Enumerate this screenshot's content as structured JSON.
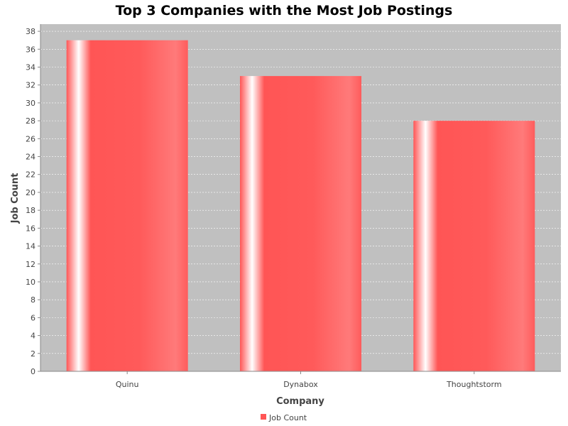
{
  "chart_data": {
    "type": "bar",
    "title": "Top 3 Companies with the Most Job Postings",
    "xlabel": "Company",
    "ylabel": "Job Count",
    "categories": [
      "Quinu",
      "Dynabox",
      "Thoughtstorm"
    ],
    "series": [
      {
        "name": "Job Count",
        "values": [
          37,
          33,
          28
        ]
      }
    ],
    "ylim": [
      0,
      38.8
    ],
    "yticks": [
      0,
      2,
      4,
      6,
      8,
      10,
      12,
      14,
      16,
      18,
      20,
      22,
      24,
      26,
      28,
      30,
      32,
      34,
      36,
      38
    ],
    "grid": true,
    "legend_position": "bottom-center",
    "colors": {
      "bar": "#ff5555",
      "bar_highlight": "#ffffff",
      "plot_background": "#c0c0c0",
      "gridline": "#ffffff",
      "axis_line": "#888888"
    }
  }
}
